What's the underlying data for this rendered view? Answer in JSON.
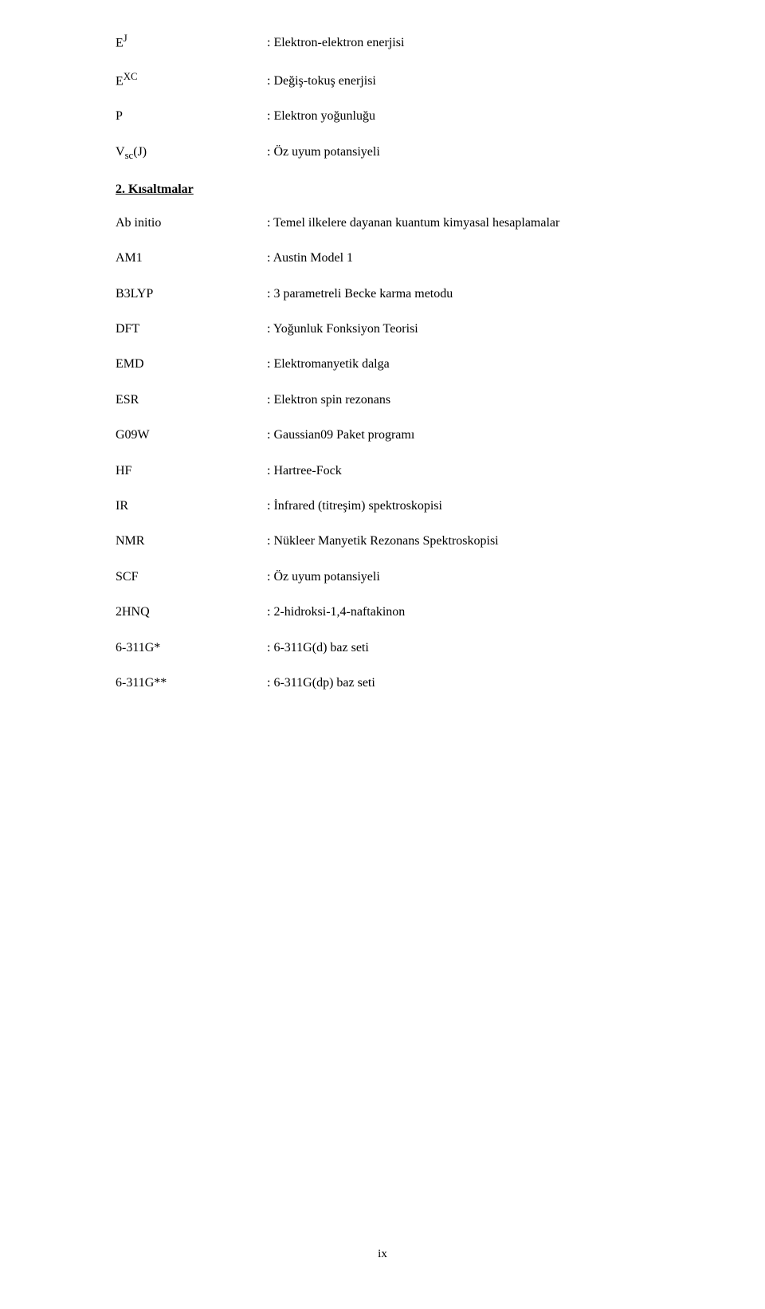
{
  "section1": {
    "rows": [
      {
        "term_html": "E<span class='sup'>J</span>",
        "desc": ": Elektron-elektron enerjisi"
      },
      {
        "term_html": "E<span class='sup'>XC</span>",
        "desc": ": Değiş-tokuş enerjisi"
      },
      {
        "term_html": "P",
        "desc": ": Elektron yoğunluğu"
      },
      {
        "term_html": "V<span class='sub'>sc</span>(J)",
        "desc": ": Öz uyum potansiyeli"
      }
    ]
  },
  "heading": "2. Kısaltmalar",
  "section2": {
    "rows": [
      {
        "term": "Ab initio",
        "desc": ": Temel ilkelere dayanan kuantum kimyasal hesaplamalar"
      },
      {
        "term": "AM1",
        "desc": ": Austin Model 1"
      },
      {
        "term": "B3LYP",
        "desc": ": 3 parametreli Becke karma metodu"
      },
      {
        "term": "DFT",
        "desc": ": Yoğunluk Fonksiyon Teorisi"
      },
      {
        "term": "EMD",
        "desc": ": Elektromanyetik dalga"
      },
      {
        "term": "ESR",
        "desc": ": Elektron spin rezonans"
      },
      {
        "term": "G09W",
        "desc": ": Gaussian09 Paket programı"
      },
      {
        "term": "HF",
        "desc": ": Hartree-Fock"
      },
      {
        "term": "IR",
        "desc": ": İnfrared (titreşim) spektroskopisi"
      },
      {
        "term": "NMR",
        "desc": ": Nükleer Manyetik Rezonans Spektroskopisi"
      },
      {
        "term": "SCF",
        "desc": ": Öz uyum potansiyeli"
      },
      {
        "term": "2HNQ",
        "desc": ": 2-hidroksi-1,4-naftakinon"
      },
      {
        "term": "6-311G*",
        "desc": ": 6-311G(d) baz seti"
      },
      {
        "term": "6-311G**",
        "desc": ": 6-311G(dp) baz seti"
      }
    ]
  },
  "page_number": "ix"
}
